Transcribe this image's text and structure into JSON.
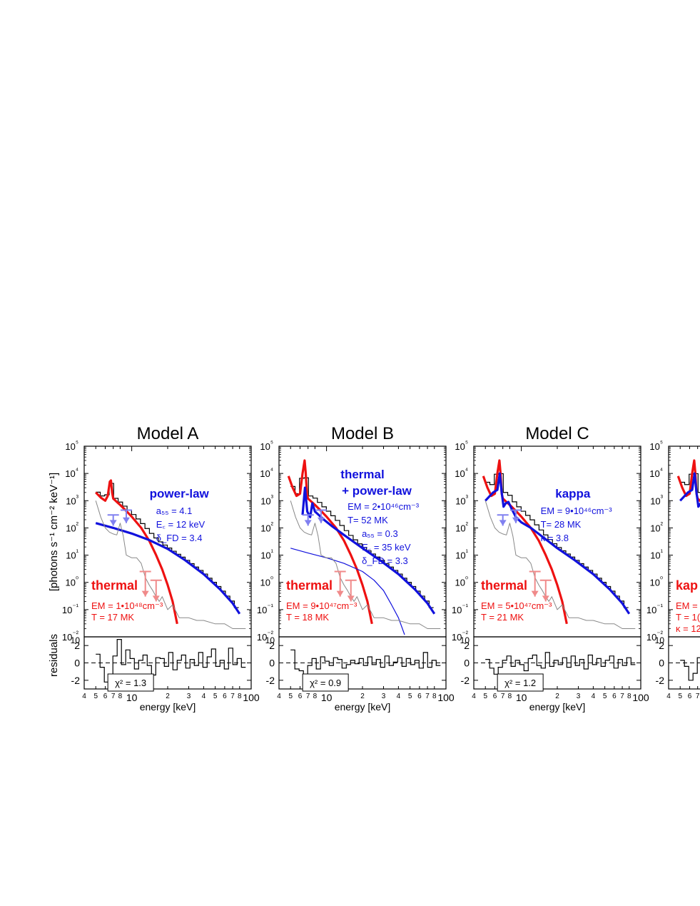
{
  "figure": {
    "ylabel_main": "[photons s⁻¹ cm⁻² keV⁻¹]",
    "ylabel_resid": "residuals",
    "xlabel": "energy [keV]"
  },
  "colors": {
    "thermal": "#ee1111",
    "nonthermal": "#1111dd",
    "light_blue": "#8080f0",
    "light_red": "#f08a8a",
    "background": "#888888",
    "data": "#000000"
  },
  "chart_data": [
    {
      "type": "line",
      "title": "Model A",
      "xscale": "log",
      "yscale": "log",
      "xlim": [
        4,
        100
      ],
      "ylim": [
        0.01,
        100000
      ],
      "resid_ylim": [
        -3,
        3
      ],
      "x_ticks": [
        "4",
        "5",
        "6",
        "7",
        "8",
        "10",
        "2",
        "3",
        "4",
        "5",
        "6",
        "7",
        "8",
        "100"
      ],
      "y_ticks": [
        "10⁻²",
        "10⁻¹",
        "10⁰",
        "10¹",
        "10²",
        "10³",
        "10⁴",
        "10⁵"
      ],
      "resid_ticks": [
        "2",
        "0",
        "-2"
      ],
      "series": [
        {
          "color": "thermal",
          "width": 3.2,
          "x": [
            5.0,
            5.5,
            6.0,
            6.3,
            6.55,
            6.7,
            6.85,
            7.0,
            7.5,
            8.0,
            9,
            10,
            12,
            14,
            16,
            18,
            20,
            22,
            24
          ],
          "y": [
            2000,
            1300,
            1000,
            1500,
            5000,
            5500,
            2000,
            1200,
            900,
            700,
            420,
            260,
            100,
            34,
            10,
            3,
            0.8,
            0.2,
            0.03
          ]
        },
        {
          "color": "nonthermal",
          "width": 3.2,
          "x": [
            5,
            7,
            10,
            14,
            20,
            28,
            40,
            55,
            70,
            80
          ],
          "y": [
            150,
            100,
            62,
            36,
            17,
            6.5,
            2.0,
            0.55,
            0.17,
            0.07
          ]
        },
        {
          "color": "background",
          "width": 1,
          "x": [
            5,
            5.5,
            6,
            6.5,
            7,
            7.5,
            8,
            8.5,
            9,
            10,
            11,
            12,
            13,
            14,
            15,
            16,
            17,
            18,
            20,
            22,
            25,
            30,
            35,
            40,
            50,
            60,
            70,
            80,
            90
          ],
          "y": [
            1000,
            250,
            100,
            70,
            60,
            55,
            150,
            50,
            10,
            8,
            8,
            5,
            1.5,
            0.8,
            0.5,
            0.3,
            0.2,
            0.3,
            0.1,
            0.15,
            0.05,
            0.05,
            0.04,
            0.04,
            0.03,
            0.03,
            0.02,
            0.02,
            0.02
          ]
        }
      ],
      "residuals": [
        1,
        -0.5,
        -2.2,
        -1.3,
        0.8,
        2.7,
        -0.2,
        1.5,
        0.5,
        -0.7,
        0.3,
        0.9,
        -0.3,
        -1.4,
        0.6,
        0.5,
        -0.4,
        1.2,
        -0.8,
        0.3,
        0.9,
        -0.6,
        0.4,
        -0.3,
        1.2,
        -0.5,
        0.7,
        1.6,
        -0.4,
        0.3,
        -0.7,
        1.7,
        -0.2,
        0.5,
        -0.5
      ],
      "annotations": {
        "thermal_label": "thermal",
        "thermal_em": "EM = 1•10⁴⁸cm⁻³",
        "thermal_t": "T = 17 MK",
        "model_label": "power-law",
        "model_label2": "",
        "params": [
          "a₅₅ = 4.1",
          "E꜀ = 12 keV",
          "δ_FD = 3.4"
        ]
      },
      "chi2": "χ² = 1.3"
    },
    {
      "type": "line",
      "title": "Model B",
      "xscale": "log",
      "yscale": "log",
      "xlim": [
        4,
        100
      ],
      "ylim": [
        0.01,
        100000
      ],
      "resid_ylim": [
        -3,
        3
      ],
      "x_ticks": [
        "4",
        "5",
        "6",
        "7",
        "8",
        "10",
        "2",
        "3",
        "4",
        "5",
        "6",
        "7",
        "8",
        "100"
      ],
      "y_ticks": [
        "10⁻²",
        "10⁻¹",
        "10⁰",
        "10¹",
        "10²",
        "10³",
        "10⁴",
        "10⁵"
      ],
      "resid_ticks": [
        "2",
        "0",
        "-2"
      ],
      "series": [
        {
          "color": "thermal",
          "width": 3.2,
          "x": [
            4.8,
            5.2,
            5.6,
            6.0,
            6.3,
            6.55,
            6.7,
            6.85,
            7.0,
            7.5,
            8,
            9,
            10,
            12,
            14,
            16,
            18,
            20,
            22,
            24
          ],
          "y": [
            8000,
            3000,
            1500,
            1800,
            10000,
            30000,
            10000,
            1800,
            1200,
            900,
            700,
            420,
            260,
            100,
            34,
            10,
            3,
            0.8,
            0.2,
            0.03
          ]
        },
        {
          "color": "nonthermal",
          "width": 3.2,
          "x": [
            6.3,
            6.6,
            6.9,
            7.3,
            7.6,
            8.0,
            8.6,
            9.5,
            11,
            14,
            20,
            28,
            40,
            55,
            70,
            80
          ],
          "y": [
            300,
            3000,
            400,
            250,
            800,
            400,
            300,
            200,
            120,
            55,
            18,
            6.5,
            2.0,
            0.55,
            0.17,
            0.07
          ]
        },
        {
          "color": "nonthermal",
          "width": 1.2,
          "x": [
            5,
            7,
            10,
            14,
            20,
            25,
            30,
            35,
            40,
            45
          ],
          "y": [
            18,
            12,
            8,
            5,
            2.5,
            1.2,
            0.5,
            0.15,
            0.05,
            0.012
          ]
        },
        {
          "color": "background",
          "width": 1,
          "x": [
            5,
            5.5,
            6,
            6.5,
            7,
            7.5,
            8,
            8.5,
            9,
            10,
            11,
            12,
            13,
            14,
            15,
            16,
            17,
            18,
            20,
            22,
            25,
            30,
            35,
            40,
            50,
            60,
            70,
            80,
            90
          ],
          "y": [
            1000,
            250,
            100,
            70,
            60,
            55,
            150,
            50,
            10,
            8,
            8,
            5,
            1.5,
            0.8,
            0.5,
            0.3,
            0.2,
            0.3,
            0.1,
            0.15,
            0.05,
            0.05,
            0.04,
            0.04,
            0.03,
            0.03,
            0.02,
            0.02,
            0.02
          ]
        }
      ],
      "residuals": [
        1.5,
        -0.7,
        -0.9,
        -1.5,
        -0.3,
        0.5,
        -0.7,
        0.7,
        0.2,
        -0.3,
        0.6,
        0.4,
        -0.6,
        -0.2,
        0.3,
        -0.1,
        0.5,
        -0.3,
        0.7,
        -0.2,
        0.4,
        -0.5,
        0.8,
        -0.3,
        0.1,
        0.6,
        -0.4,
        0.5,
        -0.2,
        0.3,
        -0.6,
        1.2,
        -0.5,
        0.3,
        -0.3
      ],
      "annotations": {
        "thermal_label": "thermal",
        "thermal_em": "EM = 9•10⁴⁷cm⁻³",
        "thermal_t": "T = 18 MK",
        "model_label": "thermal",
        "model_label2": "+ power-law",
        "params": [
          "EM = 2•10⁴⁶cm⁻³",
          "T= 52 MK",
          "a₅₅ = 0.3",
          "E꜀ = 35 keV",
          "δ_FD = 3.3"
        ]
      },
      "chi2": "χ² = 0.9"
    },
    {
      "type": "line",
      "title": "Model C",
      "xscale": "log",
      "yscale": "log",
      "xlim": [
        4,
        100
      ],
      "ylim": [
        0.01,
        100000
      ],
      "resid_ylim": [
        -3,
        3
      ],
      "x_ticks": [
        "4",
        "5",
        "6",
        "7",
        "8",
        "10",
        "2",
        "3",
        "4",
        "5",
        "6",
        "7",
        "8",
        "100"
      ],
      "y_ticks": [
        "10⁻²",
        "10⁻¹",
        "10⁰",
        "10¹",
        "10²",
        "10³",
        "10⁴",
        "10⁵"
      ],
      "resid_ticks": [
        "2",
        "0",
        "-2"
      ],
      "series": [
        {
          "color": "thermal",
          "width": 3.2,
          "x": [
            4.8,
            5.2,
            5.6,
            6.0,
            6.3,
            6.55,
            6.7,
            6.85,
            7.0,
            7.5,
            8,
            9,
            10,
            12,
            14,
            16,
            18,
            20,
            22,
            24
          ],
          "y": [
            8000,
            3000,
            1500,
            1800,
            10000,
            30000,
            10000,
            1800,
            1200,
            900,
            700,
            420,
            260,
            100,
            34,
            10,
            3,
            0.8,
            0.2,
            0.03
          ]
        },
        {
          "color": "nonthermal",
          "width": 3.2,
          "x": [
            5.0,
            5.8,
            6.3,
            6.6,
            6.85,
            7.1,
            7.4,
            7.8,
            8.3,
            9,
            10,
            12,
            14,
            20,
            28,
            40,
            55,
            70,
            80
          ],
          "y": [
            1000,
            2000,
            2500,
            10000,
            2000,
            600,
            800,
            900,
            500,
            250,
            160,
            100,
            60,
            18,
            6.5,
            2.0,
            0.55,
            0.17,
            0.07
          ]
        },
        {
          "color": "background",
          "width": 1,
          "x": [
            5,
            5.5,
            6,
            6.5,
            7,
            7.5,
            8,
            8.5,
            9,
            10,
            11,
            12,
            13,
            14,
            15,
            16,
            17,
            18,
            20,
            22,
            25,
            30,
            35,
            40,
            50,
            60,
            70,
            80,
            90
          ],
          "y": [
            1000,
            250,
            100,
            70,
            60,
            55,
            150,
            50,
            10,
            8,
            8,
            5,
            1.5,
            0.8,
            0.5,
            0.3,
            0.2,
            0.3,
            0.1,
            0.15,
            0.05,
            0.05,
            0.04,
            0.04,
            0.03,
            0.03,
            0.02,
            0.02,
            0.02
          ]
        }
      ],
      "residuals": [
        0.4,
        -0.6,
        -1.3,
        -0.5,
        0.3,
        0.8,
        -0.4,
        0.3,
        -0.2,
        -0.9,
        0.5,
        0.9,
        -0.3,
        -0.6,
        1.2,
        -0.4,
        0.3,
        -0.2,
        0.6,
        -0.5,
        0.8,
        -0.3,
        0.4,
        -0.7,
        0.9,
        -0.2,
        0.5,
        -0.4,
        0.3,
        0.8,
        -0.6,
        0.4,
        -0.3,
        0.6,
        -0.2
      ],
      "annotations": {
        "thermal_label": "thermal",
        "thermal_em": "EM = 5•10⁴⁷cm⁻³",
        "thermal_t": "T = 21 MK",
        "model_label": "kappa",
        "model_label2": "",
        "params": [
          "EM = 9•10⁴⁶cm⁻³",
          "T= 28 MK",
          "κ = 3.8"
        ]
      },
      "chi2": "χ² = 1.2"
    },
    {
      "type": "line",
      "title": "",
      "xscale": "log",
      "yscale": "log",
      "xlim": [
        4,
        100
      ],
      "ylim": [
        0.01,
        100000
      ],
      "resid_ylim": [
        -3,
        3
      ],
      "x_ticks": [
        "4",
        "5",
        "6",
        "7"
      ],
      "y_ticks": [
        "10⁻²",
        "10⁻¹",
        "10⁰",
        "10¹",
        "10²",
        "10³",
        "10⁴",
        "10⁵"
      ],
      "resid_ticks": [
        "2",
        "0",
        "-2"
      ],
      "series": [
        {
          "color": "thermal",
          "width": 3.2,
          "x": [
            4.8,
            5.2,
            5.6,
            6.0,
            6.3,
            6.55,
            6.7,
            6.85,
            7.0,
            7.5
          ],
          "y": [
            8000,
            3000,
            1500,
            1800,
            10000,
            30000,
            10000,
            1800,
            1200,
            900
          ]
        },
        {
          "color": "nonthermal",
          "width": 3.2,
          "x": [
            5.0,
            5.8,
            6.3,
            6.6,
            6.85,
            7.1,
            7.4
          ],
          "y": [
            1000,
            2000,
            2500,
            10000,
            2000,
            600,
            800
          ]
        }
      ],
      "residuals": [
        0.3,
        -0.4,
        -2.0,
        -1.2,
        0.6,
        1.0
      ],
      "annotations": {
        "thermal_label": "kap",
        "thermal_em": "EM =",
        "thermal_t": "T = 1(",
        "model_label": "",
        "model_label2": "",
        "params": [],
        "extra": "κ = 12"
      },
      "chi2": ""
    }
  ]
}
